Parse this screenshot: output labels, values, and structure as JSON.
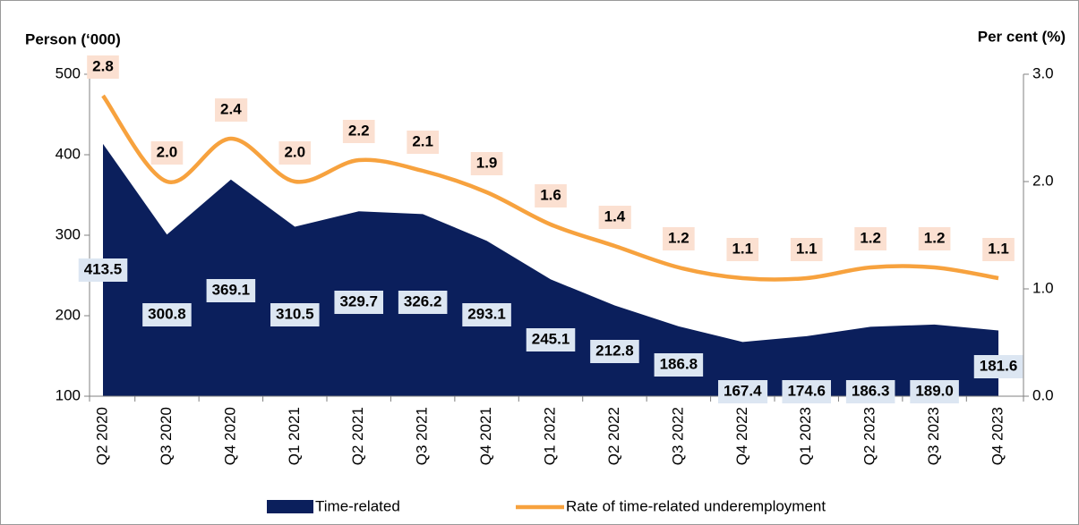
{
  "chart_data": {
    "type": "area-line",
    "y_label": "Person (‘000)",
    "y2_label": "Per cent (%)",
    "categories": [
      "Q2 2020",
      "Q3 2020",
      "Q4 2020",
      "Q1 2021",
      "Q2 2021",
      "Q3 2021",
      "Q4 2021",
      "Q1 2022",
      "Q2 2022",
      "Q3 2022",
      "Q4 2022",
      "Q1 2023",
      "Q2 2023",
      "Q3 2023",
      "Q4 2023"
    ],
    "ylim": [
      100,
      500
    ],
    "yticks": [
      100,
      200,
      300,
      400,
      500
    ],
    "y2lim": [
      0,
      3
    ],
    "y2ticks": [
      {
        "value": 0,
        "label": "0.0"
      },
      {
        "value": 1,
        "label": "1.0"
      },
      {
        "value": 2,
        "label": "2.0"
      },
      {
        "value": 3,
        "label": "3.0"
      }
    ],
    "series": [
      {
        "name": "Time-related",
        "color": "#0b1f5c",
        "kind": "area",
        "values": [
          413.5,
          300.8,
          369.1,
          310.5,
          329.7,
          326.2,
          293.1,
          245.1,
          212.8,
          186.8,
          167.4,
          174.6,
          186.3,
          189.0,
          181.6
        ],
        "value_labels": [
          "413.5",
          "300.8",
          "369.1",
          "310.5",
          "329.7",
          "326.2",
          "293.1",
          "245.1",
          "212.8",
          "186.8",
          "167.4",
          "174.6",
          "186.3",
          "189.0",
          "181.6"
        ]
      },
      {
        "name": "Rate of time-related underemployment",
        "color": "#f7a23e",
        "kind": "line",
        "axis": "y2",
        "values": [
          2.8,
          2.0,
          2.4,
          2.0,
          2.2,
          2.1,
          1.9,
          1.6,
          1.4,
          1.2,
          1.1,
          1.1,
          1.2,
          1.2,
          1.1
        ],
        "value_labels": [
          "2.8",
          "2.0",
          "2.4",
          "2.0",
          "2.2",
          "2.1",
          "1.9",
          "1.6",
          "1.4",
          "1.2",
          "1.1",
          "1.1",
          "1.2",
          "1.2",
          "1.1"
        ]
      }
    ]
  }
}
